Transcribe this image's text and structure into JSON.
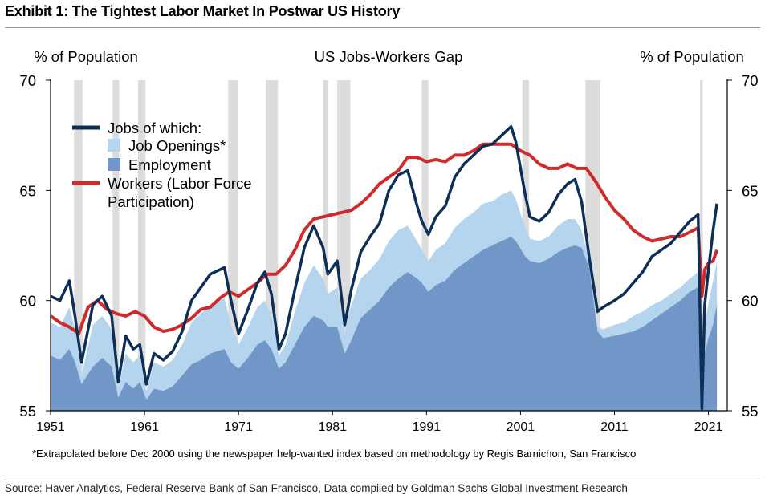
{
  "exhibit_title": "Exhibit 1: The Tightest Labor Market In Postwar US History",
  "footnote": "*Extrapolated before Dec 2000 using the newspaper help-wanted index based on methodology by Regis Barnichon, San Francisco",
  "source": "Source: Haver Analytics, Federal Reserve Bank of San Francisco, Data compiled by Goldman Sachs Global Investment Research",
  "chart_data": {
    "type": "area",
    "title": "US Jobs-Workers Gap",
    "ylabel_left": "% of Population",
    "ylabel_right": "% of Population",
    "xlim": [
      1951,
      2023
    ],
    "ylim": [
      55,
      70
    ],
    "x_ticks": [
      1951,
      1961,
      1971,
      1981,
      1991,
      2001,
      2011,
      2021
    ],
    "y_ticks": [
      55,
      60,
      65,
      70
    ],
    "legend_placement": "top-left",
    "colors": {
      "jobs": "#0d2f57",
      "job_openings": "#b5d5ee",
      "employment": "#7097c7",
      "workers": "#cf2b2b",
      "recession": "#dcdcdc"
    },
    "legend": [
      {
        "label": "Jobs of which:",
        "kind": "line",
        "color": "#0d2f57"
      },
      {
        "label": "Job Openings*",
        "kind": "box",
        "color": "#b5d5ee"
      },
      {
        "label": "Employment",
        "kind": "box",
        "color": "#7097c7"
      },
      {
        "label": "Workers (Labor Force",
        "label2": "Participation)",
        "kind": "line",
        "color": "#cf2b2b"
      }
    ],
    "recessions": [
      [
        1953.5,
        1954.4
      ],
      [
        1957.6,
        1958.3
      ],
      [
        1960.3,
        1961.1
      ],
      [
        1969.9,
        1970.9
      ],
      [
        1973.9,
        1975.2
      ],
      [
        1980.0,
        1980.5
      ],
      [
        1981.5,
        1982.9
      ],
      [
        1990.5,
        1991.2
      ],
      [
        2001.2,
        2001.9
      ],
      [
        2007.9,
        2009.5
      ],
      [
        2020.1,
        2020.4
      ]
    ],
    "series": [
      {
        "name": "Jobs of which:",
        "x": [
          1951,
          1952,
          1953,
          1953.6,
          1954.3,
          1955.5,
          1956.5,
          1957.5,
          1958.2,
          1959,
          1959.8,
          1960.5,
          1961.2,
          1962,
          1963,
          1964,
          1965,
          1966,
          1967,
          1968,
          1969.5,
          1970.2,
          1971,
          1972,
          1973,
          1973.8,
          1974.5,
          1975.3,
          1976,
          1977,
          1978,
          1979,
          1980,
          1980.5,
          1981.5,
          1982.3,
          1983,
          1984,
          1985,
          1986,
          1987,
          1988,
          1989,
          1990,
          1990.5,
          1991.2,
          1992,
          1993,
          1994,
          1995,
          1996,
          1997,
          1998,
          1999,
          2000,
          2000.5,
          2001.5,
          2002,
          2003,
          2004,
          2005,
          2006,
          2006.8,
          2007.5,
          2008.3,
          2009.2,
          2009.8,
          2011,
          2012,
          2013,
          2014,
          2015,
          2016,
          2017,
          2018,
          2019,
          2019.9,
          2020.3,
          2020.6,
          2021,
          2021.5,
          2021.9
        ],
        "values": [
          60.2,
          60.0,
          60.9,
          59.3,
          57.2,
          59.8,
          60.2,
          59.3,
          56.3,
          58.4,
          57.8,
          58.0,
          56.2,
          57.6,
          57.3,
          57.7,
          58.6,
          60.0,
          60.6,
          61.2,
          61.5,
          60.0,
          58.5,
          59.6,
          60.8,
          61.3,
          60.3,
          57.8,
          58.5,
          60.5,
          62.4,
          63.4,
          62.4,
          61.2,
          61.8,
          58.9,
          60.5,
          62.2,
          62.9,
          63.5,
          65.0,
          65.7,
          65.9,
          64.3,
          63.6,
          63.0,
          63.8,
          64.3,
          65.6,
          66.2,
          66.6,
          67.0,
          67.1,
          67.5,
          67.9,
          67.2,
          64.8,
          63.8,
          63.6,
          64.0,
          64.8,
          65.3,
          65.5,
          64.5,
          62.0,
          59.5,
          59.7,
          60.0,
          60.3,
          60.8,
          61.3,
          62.0,
          62.3,
          62.6,
          63.1,
          63.6,
          63.9,
          55.1,
          59.8,
          61.4,
          63.2,
          64.4
        ]
      },
      {
        "name": "Job Openings*",
        "x": [
          1951,
          1952,
          1953,
          1953.6,
          1954.3,
          1955.5,
          1956.5,
          1957.5,
          1958.2,
          1959,
          1959.8,
          1960.5,
          1961.2,
          1962,
          1963,
          1964,
          1965,
          1966,
          1967,
          1968,
          1969.5,
          1970.2,
          1971,
          1972,
          1973,
          1973.8,
          1974.5,
          1975.3,
          1976,
          1977,
          1978,
          1979,
          1980,
          1980.5,
          1981.5,
          1982.3,
          1983,
          1984,
          1985,
          1986,
          1987,
          1988,
          1989,
          1990,
          1990.5,
          1991.2,
          1992,
          1993,
          1994,
          1995,
          1996,
          1997,
          1998,
          1999,
          2000,
          2000.5,
          2001.5,
          2002,
          2003,
          2004,
          2005,
          2006,
          2006.8,
          2007.5,
          2008.3,
          2009.2,
          2009.8,
          2011,
          2012,
          2013,
          2014,
          2015,
          2016,
          2017,
          2018,
          2019,
          2019.9,
          2020.3,
          2020.6,
          2021,
          2021.5,
          2021.9
        ],
        "values": [
          59.0,
          58.8,
          59.7,
          58.7,
          56.6,
          58.9,
          59.3,
          58.7,
          56.0,
          57.6,
          57.2,
          57.5,
          55.9,
          57.2,
          57.0,
          57.3,
          58.0,
          59.0,
          59.4,
          59.8,
          60.1,
          58.9,
          58.0,
          58.8,
          59.7,
          60.0,
          59.3,
          57.5,
          58.0,
          59.5,
          60.8,
          61.6,
          61.0,
          60.3,
          60.6,
          58.5,
          59.8,
          61.0,
          61.4,
          61.9,
          62.7,
          63.2,
          63.4,
          62.7,
          62.3,
          61.8,
          62.3,
          62.6,
          63.3,
          63.7,
          64.0,
          64.4,
          64.5,
          64.8,
          65.0,
          64.6,
          63.3,
          62.8,
          62.7,
          62.9,
          63.4,
          63.7,
          63.7,
          63.2,
          61.8,
          58.8,
          58.7,
          58.9,
          59.0,
          59.3,
          59.5,
          59.8,
          60.0,
          60.3,
          60.6,
          61.0,
          61.3,
          55.1,
          58.8,
          59.9,
          60.9,
          61.8
        ]
      },
      {
        "name": "Employment",
        "x": [
          1951,
          1952,
          1953,
          1953.6,
          1954.3,
          1955.5,
          1956.5,
          1957.5,
          1958.2,
          1959,
          1959.8,
          1960.5,
          1961.2,
          1962,
          1963,
          1964,
          1965,
          1966,
          1967,
          1968,
          1969.5,
          1970.2,
          1971,
          1972,
          1973,
          1973.8,
          1974.5,
          1975.3,
          1976,
          1977,
          1978,
          1979,
          1980,
          1980.5,
          1981.5,
          1982.3,
          1983,
          1984,
          1985,
          1986,
          1987,
          1988,
          1989,
          1990,
          1990.5,
          1991.2,
          1992,
          1993,
          1994,
          1995,
          1996,
          1997,
          1998,
          1999,
          2000,
          2000.5,
          2001.5,
          2002,
          2003,
          2004,
          2005,
          2006,
          2006.8,
          2007.5,
          2008.3,
          2009.2,
          2009.8,
          2011,
          2012,
          2013,
          2014,
          2015,
          2016,
          2017,
          2018,
          2019,
          2019.9,
          2020.3,
          2020.6,
          2021,
          2021.5,
          2021.9
        ],
        "values": [
          57.5,
          57.3,
          57.8,
          57.2,
          56.2,
          57.0,
          57.4,
          57.0,
          55.6,
          56.3,
          56.0,
          56.3,
          55.5,
          56.0,
          55.9,
          56.1,
          56.6,
          57.1,
          57.3,
          57.6,
          57.8,
          57.2,
          56.9,
          57.4,
          58.0,
          58.2,
          57.8,
          56.9,
          57.2,
          58.0,
          58.8,
          59.3,
          59.1,
          58.8,
          58.8,
          57.6,
          58.2,
          59.2,
          59.6,
          60.0,
          60.6,
          61.0,
          61.3,
          61.0,
          60.8,
          60.4,
          60.7,
          60.9,
          61.4,
          61.7,
          62.0,
          62.3,
          62.5,
          62.7,
          62.9,
          62.7,
          62.0,
          61.8,
          61.7,
          61.9,
          62.2,
          62.4,
          62.5,
          62.4,
          61.5,
          58.6,
          58.3,
          58.4,
          58.5,
          58.6,
          58.8,
          59.1,
          59.4,
          59.7,
          60.0,
          60.4,
          60.6,
          55.1,
          57.6,
          58.3,
          58.9,
          59.8
        ]
      },
      {
        "name": "Workers (Labor Force Participation)",
        "x": [
          1951,
          1952,
          1953,
          1954,
          1955,
          1956,
          1957,
          1958,
          1959,
          1960,
          1961,
          1962,
          1963,
          1964,
          1965,
          1966,
          1967,
          1968,
          1969,
          1970,
          1971,
          1972,
          1973,
          1974,
          1975,
          1976,
          1977,
          1978,
          1979,
          1980,
          1981,
          1982,
          1983,
          1984,
          1985,
          1986,
          1987,
          1988,
          1989,
          1990,
          1991,
          1992,
          1993,
          1994,
          1995,
          1996,
          1997,
          1998,
          1999,
          2000,
          2001,
          2002,
          2003,
          2004,
          2005,
          2006,
          2007,
          2008,
          2009,
          2010,
          2011,
          2012,
          2013,
          2014,
          2015,
          2016,
          2017,
          2018,
          2019,
          2019.9,
          2020.3,
          2020.6,
          2021,
          2021.5,
          2021.9
        ],
        "values": [
          59.3,
          59.0,
          58.8,
          58.5,
          59.7,
          60.0,
          59.6,
          59.4,
          59.3,
          59.5,
          59.3,
          58.8,
          58.6,
          58.7,
          58.9,
          59.2,
          59.6,
          59.7,
          60.1,
          60.4,
          60.2,
          60.5,
          60.8,
          61.2,
          61.2,
          61.6,
          62.3,
          63.2,
          63.7,
          63.8,
          63.9,
          64.0,
          64.1,
          64.4,
          64.8,
          65.3,
          65.6,
          65.9,
          66.5,
          66.5,
          66.3,
          66.4,
          66.3,
          66.6,
          66.6,
          66.8,
          67.1,
          67.1,
          67.1,
          67.1,
          66.8,
          66.6,
          66.2,
          66.0,
          66.0,
          66.2,
          66.0,
          66.0,
          65.4,
          64.7,
          64.1,
          63.7,
          63.2,
          62.9,
          62.7,
          62.8,
          62.9,
          62.9,
          63.1,
          63.3,
          60.2,
          61.4,
          61.7,
          61.8,
          62.3
        ]
      }
    ]
  }
}
